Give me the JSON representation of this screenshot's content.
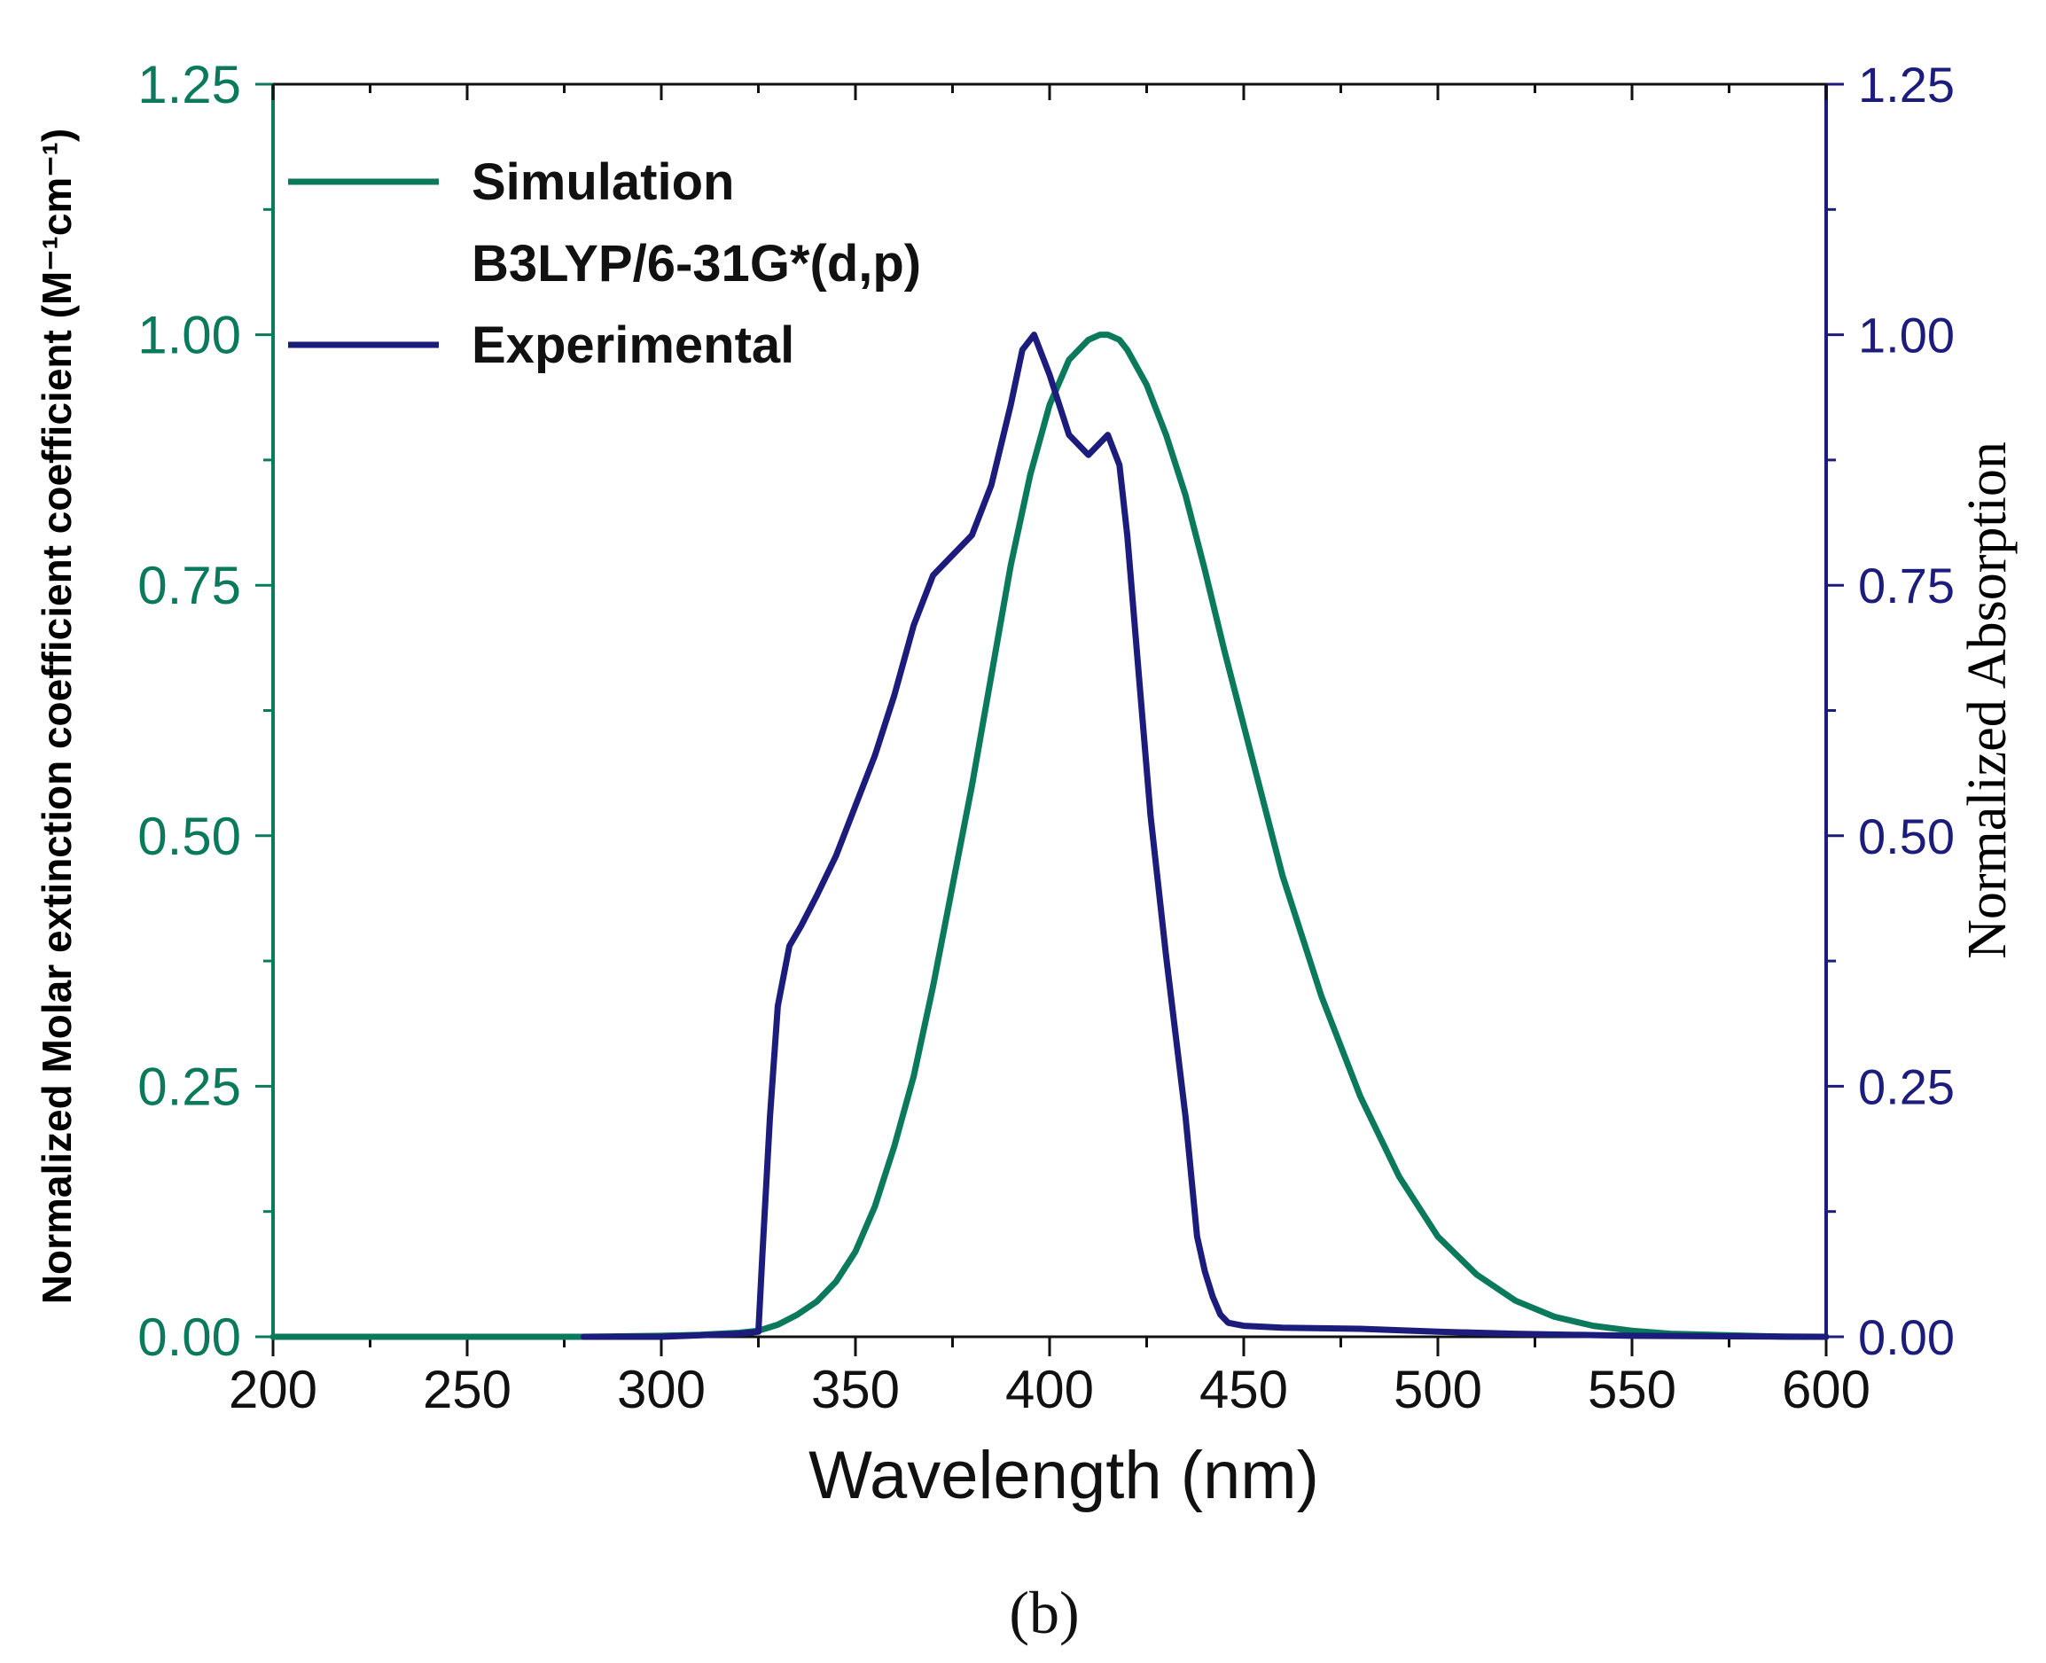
{
  "chart_data": {
    "type": "line",
    "panel_label": "(b)",
    "xlabel": "Wavelength (nm)",
    "ylabel_left": "Normalized Molar extinction coefficient  coefficient (M⁻¹cm⁻¹)",
    "ylabel_right": "Normalized Absorption",
    "xlim": [
      200,
      600
    ],
    "ylim_left": [
      0,
      1.25
    ],
    "ylim_right": [
      0,
      1.25
    ],
    "x_ticks": [
      "200",
      "250",
      "300",
      "350",
      "400",
      "450",
      "500",
      "550",
      "600"
    ],
    "y_ticks_left": [
      "0.00",
      "0.25",
      "0.50",
      "0.75",
      "1.00",
      "1.25"
    ],
    "y_ticks_right": [
      "0.00",
      "0.25",
      "0.50",
      "0.75",
      "1.00",
      "1.25"
    ],
    "grid": false,
    "legend_position": "top-left",
    "colors": {
      "simulation": "#0b7a5c",
      "experimental": "#1c1c7c",
      "left_axis": "#0b7a5c",
      "right_axis": "#1c1c7c"
    },
    "legend": [
      {
        "lines": [
          "Simulation",
          "B3LYP/6-31G*(d,p)"
        ],
        "color": "#0b7a5c"
      },
      {
        "lines": [
          "Experimental"
        ],
        "color": "#1c1c7c"
      }
    ],
    "series": [
      {
        "name": "Simulation B3LYP/6-31G*(d,p)",
        "axis": "left",
        "color": "#0b7a5c",
        "x": [
          200,
          280,
          300,
          310,
          320,
          325,
          330,
          335,
          340,
          345,
          350,
          355,
          360,
          365,
          370,
          375,
          380,
          385,
          390,
          395,
          400,
          405,
          410,
          413,
          415,
          418,
          420,
          425,
          430,
          435,
          440,
          445,
          450,
          455,
          460,
          470,
          480,
          490,
          500,
          510,
          520,
          530,
          540,
          550,
          560,
          570,
          580,
          590,
          600
        ],
        "y": [
          0,
          0,
          0.001,
          0.002,
          0.004,
          0.006,
          0.012,
          0.022,
          0.035,
          0.055,
          0.085,
          0.13,
          0.19,
          0.26,
          0.35,
          0.45,
          0.55,
          0.66,
          0.77,
          0.86,
          0.93,
          0.975,
          0.995,
          1.0,
          1.0,
          0.995,
          0.985,
          0.95,
          0.9,
          0.84,
          0.765,
          0.685,
          0.61,
          0.535,
          0.46,
          0.34,
          0.24,
          0.16,
          0.1,
          0.062,
          0.036,
          0.02,
          0.011,
          0.006,
          0.003,
          0.002,
          0.001,
          0,
          0
        ]
      },
      {
        "name": "Experimental",
        "axis": "right",
        "color": "#1c1c7c",
        "x": [
          280,
          300,
          320,
          325,
          326,
          328,
          330,
          333,
          336,
          340,
          345,
          350,
          355,
          360,
          365,
          370,
          375,
          380,
          385,
          390,
          393,
          396,
          400,
          405,
          410,
          415,
          418,
          420,
          423,
          426,
          430,
          435,
          438,
          440,
          442,
          444,
          446,
          450,
          460,
          480,
          500,
          520,
          550,
          600
        ],
        "y": [
          0,
          0,
          0.003,
          0.005,
          0.08,
          0.22,
          0.33,
          0.39,
          0.41,
          0.44,
          0.48,
          0.53,
          0.58,
          0.64,
          0.71,
          0.76,
          0.78,
          0.8,
          0.85,
          0.93,
          0.985,
          1.0,
          0.96,
          0.9,
          0.88,
          0.9,
          0.87,
          0.8,
          0.66,
          0.52,
          0.38,
          0.22,
          0.1,
          0.065,
          0.04,
          0.022,
          0.014,
          0.011,
          0.009,
          0.008,
          0.005,
          0.003,
          0.001,
          0
        ]
      }
    ]
  }
}
